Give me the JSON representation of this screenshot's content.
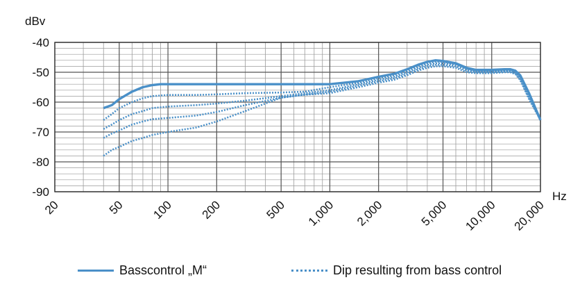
{
  "chart_data": {
    "type": "line",
    "title": "",
    "ylabel": "dBv",
    "xlabel": "Hz",
    "x_scale": "log",
    "xlim": [
      20,
      20000
    ],
    "ylim": [
      -90,
      -40
    ],
    "grid": true,
    "y_ticks": [
      -40,
      -50,
      -60,
      -70,
      -80,
      -90
    ],
    "x_ticks": [
      {
        "value": 20,
        "label": "20"
      },
      {
        "value": 50,
        "label": "50"
      },
      {
        "value": 100,
        "label": "100"
      },
      {
        "value": 200,
        "label": "200"
      },
      {
        "value": 500,
        "label": "500"
      },
      {
        "value": 1000,
        "label": "1,000"
      },
      {
        "value": 2000,
        "label": "2,000"
      },
      {
        "value": 5000,
        "label": "5,000"
      },
      {
        "value": 10000,
        "label": "10,000"
      },
      {
        "value": 20000,
        "label": "20,000"
      }
    ],
    "legend_position": "bottom",
    "colors": {
      "series": "#4a90c8",
      "grid": "#9a9a9a",
      "text": "#111111"
    },
    "legend": [
      {
        "label": "Basscontrol „M“",
        "style": "solid"
      },
      {
        "label": "Dip resulting from bass control",
        "style": "dotted"
      }
    ],
    "series": [
      {
        "style": "solid",
        "x": [
          40,
          45,
          50,
          60,
          70,
          80,
          90,
          100,
          150,
          200,
          300,
          500,
          700,
          1000,
          1500,
          2000,
          2500,
          3000,
          3500,
          4000,
          4500,
          5000,
          6000,
          7000,
          8000,
          10000,
          12000,
          13000,
          14000,
          15000,
          17000,
          20000
        ],
        "y": [
          -62,
          -61,
          -59,
          -56.5,
          -55,
          -54.3,
          -54,
          -54,
          -54,
          -54,
          -54,
          -54,
          -54,
          -54,
          -53,
          -51.5,
          -50.5,
          -49,
          -47.5,
          -46.5,
          -46,
          -46.2,
          -47,
          -48.5,
          -49.2,
          -49.2,
          -49,
          -49,
          -49.5,
          -51,
          -57,
          -66
        ]
      },
      {
        "style": "dotted",
        "x": [
          40,
          45,
          50,
          60,
          70,
          80,
          100,
          150,
          200,
          300,
          500,
          700,
          1000,
          1500,
          2000,
          2500,
          3000,
          3500,
          4000,
          4500,
          5000,
          6000,
          7000,
          8000,
          10000,
          12000,
          13000,
          14000,
          15000,
          17000,
          20000
        ],
        "y": [
          -66,
          -64,
          -62,
          -60,
          -58.7,
          -58,
          -57.6,
          -57.6,
          -57.4,
          -57,
          -56.8,
          -56.5,
          -55,
          -53.5,
          -52,
          -51,
          -49.5,
          -48,
          -47,
          -46.5,
          -46.5,
          -47.2,
          -48.8,
          -49.5,
          -49.5,
          -49.2,
          -49.2,
          -49.8,
          -51.5,
          -57.5,
          -66
        ]
      },
      {
        "style": "dotted",
        "x": [
          40,
          45,
          50,
          60,
          70,
          80,
          100,
          150,
          200,
          300,
          500,
          700,
          1000,
          1500,
          2000,
          2500,
          3000,
          3500,
          4000,
          4500,
          5000,
          6000,
          7000,
          8000,
          10000,
          12000,
          13000,
          14000,
          15000,
          17000,
          20000
        ],
        "y": [
          -69,
          -67.5,
          -66,
          -64,
          -63,
          -62,
          -61.5,
          -61,
          -60.5,
          -59.5,
          -58,
          -57,
          -56,
          -54,
          -52.5,
          -51.5,
          -50,
          -48.5,
          -47.5,
          -47,
          -47,
          -47.5,
          -49,
          -49.8,
          -49.8,
          -49.5,
          -49.5,
          -50,
          -52,
          -58,
          -66
        ]
      },
      {
        "style": "dotted",
        "x": [
          40,
          45,
          50,
          60,
          70,
          80,
          100,
          150,
          200,
          300,
          500,
          700,
          1000,
          1500,
          2000,
          2500,
          3000,
          3500,
          4000,
          4500,
          5000,
          6000,
          7000,
          8000,
          10000,
          12000,
          13000,
          14000,
          15000,
          17000,
          20000
        ],
        "y": [
          -72,
          -70.5,
          -69.5,
          -67.5,
          -66.5,
          -65.7,
          -65.3,
          -64.5,
          -63.3,
          -61,
          -58.5,
          -57.5,
          -56.5,
          -54.5,
          -53,
          -52,
          -50.5,
          -49,
          -48,
          -47.5,
          -47.5,
          -48,
          -49.5,
          -50,
          -50,
          -49.8,
          -49.8,
          -50.3,
          -52.3,
          -58.5,
          -66
        ]
      },
      {
        "style": "dotted",
        "x": [
          40,
          45,
          50,
          60,
          70,
          80,
          100,
          150,
          200,
          300,
          500,
          700,
          1000,
          1500,
          2000,
          2500,
          3000,
          3500,
          4000,
          4500,
          5000,
          6000,
          7000,
          8000,
          10000,
          12000,
          13000,
          14000,
          15000,
          17000,
          20000
        ],
        "y": [
          -78,
          -76,
          -75,
          -73,
          -72,
          -71,
          -70,
          -68.5,
          -66.5,
          -63,
          -58.5,
          -57.5,
          -57,
          -55,
          -53.5,
          -52.5,
          -51,
          -49.5,
          -48.5,
          -48,
          -48,
          -48.5,
          -50,
          -50.3,
          -50.3,
          -50,
          -50,
          -50.6,
          -52.6,
          -59,
          -66
        ]
      }
    ]
  }
}
